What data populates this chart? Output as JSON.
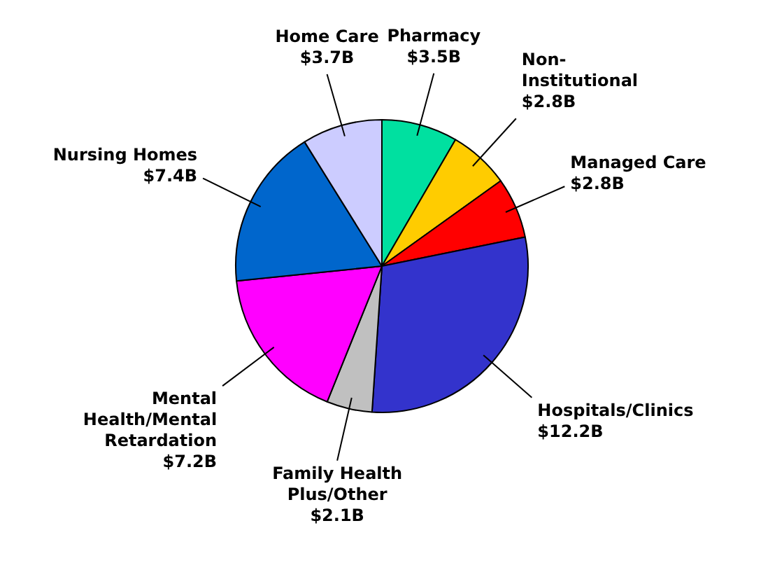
{
  "chart_data": {
    "type": "pie",
    "categories": [
      "Pharmacy",
      "Non-Institutional",
      "Managed Care",
      "Hospitals/Clinics",
      "Family Health Plus/Other",
      "Mental Health/Mental Retardation",
      "Nursing Homes",
      "Home Care"
    ],
    "values": [
      3.5,
      2.8,
      2.8,
      12.2,
      2.1,
      7.2,
      7.4,
      3.7
    ],
    "value_labels": [
      "$3.5B",
      "$2.8B",
      "$2.8B",
      "$12.2B",
      "$2.1B",
      "$7.2B",
      "$7.4B",
      "$3.7B"
    ],
    "colors": [
      "#00e0a0",
      "#ffcc00",
      "#ff0000",
      "#3333cc",
      "#c0c0c0",
      "#ff00ff",
      "#0066cc",
      "#ccccff"
    ],
    "legend": false
  }
}
